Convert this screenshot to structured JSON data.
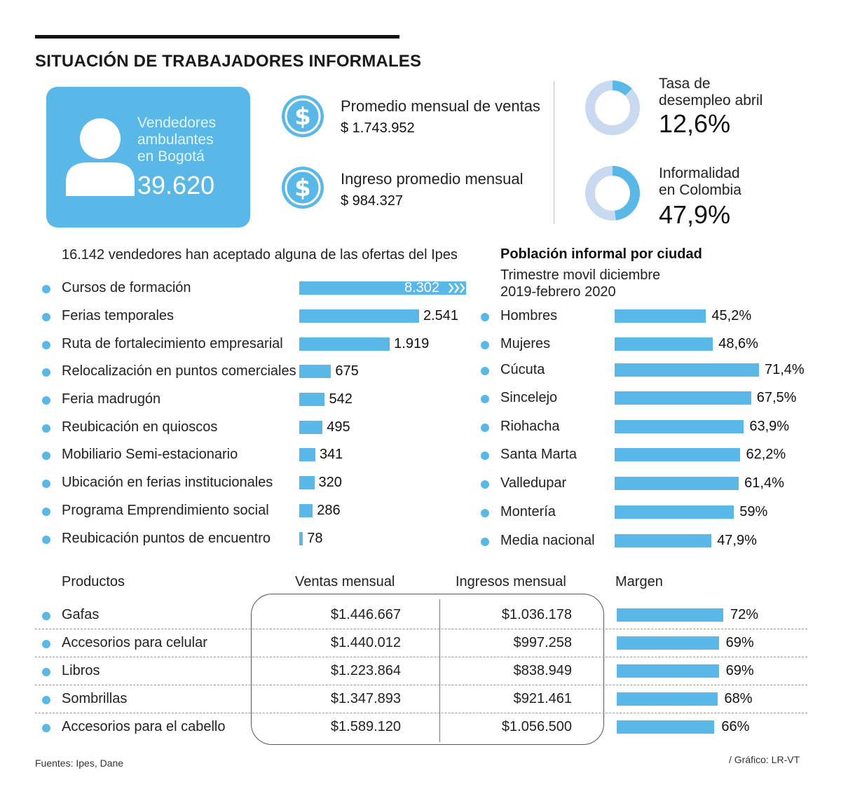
{
  "title": "SITUACIÓN DE TRABAJADORES INFORMALES",
  "colors": {
    "accent": "#5ab8e8",
    "donut_track": "#c9d9ef"
  },
  "card": {
    "icon": "person-icon",
    "label_lines": [
      "Vendedores",
      "ambulantes",
      "en Bogotá"
    ],
    "value": "39.620"
  },
  "stats": [
    {
      "icon": "dollar-icon",
      "label": "Promedio mensual de ventas",
      "value": "$ 1.743.952"
    },
    {
      "icon": "dollar-icon",
      "label": "Ingreso promedio mensual",
      "value": "$ 984.327"
    }
  ],
  "rates": [
    {
      "label_lines": [
        "Tasa de",
        "desempleo abril"
      ],
      "value": "12,6%",
      "percent": 12.6
    },
    {
      "label_lines": [
        "Informalidad",
        "en Colombia"
      ],
      "value": "47,9%",
      "percent": 47.9
    }
  ],
  "footer": {
    "source": "Fuentes: Ipes, Dane",
    "credit": "/ Gráfico: LR-VT"
  },
  "chart_data": [
    {
      "type": "bar",
      "orientation": "horizontal",
      "title": "16.142 vendedores han aceptado alguna de las ofertas del Ipes",
      "categories": [
        "Cursos de formación",
        "Ferias temporales",
        "Ruta de fortalecimiento empresarial",
        "Relocalización en puntos comerciales",
        "Feria madrugón",
        "Reubicación en quioscos",
        "Mobiliario Semi-estacionario",
        "Ubicación en ferias institucionales",
        "Programa Emprendimiento social",
        "Reubicación puntos de encuentro"
      ],
      "values": [
        8302,
        2541,
        1919,
        675,
        542,
        495,
        341,
        320,
        286,
        78
      ],
      "labels": [
        "8.302",
        "2.541",
        "1.919",
        "675",
        "542",
        "495",
        "341",
        "320",
        "286",
        "78"
      ],
      "truncated_first_bar": true
    },
    {
      "type": "bar",
      "orientation": "horizontal",
      "title": "Población informal por ciudad",
      "subtitle_lines": [
        "Trimestre movil diciembre",
        "2019-febrero 2020"
      ],
      "categories": [
        "Hombres",
        "Mujeres",
        "Cúcuta",
        "Sincelejo",
        "Riohacha",
        "Santa Marta",
        "Valledupar",
        "Montería",
        "Media nacional"
      ],
      "values": [
        45.2,
        48.6,
        71.4,
        67.5,
        63.9,
        62.2,
        61.4,
        59,
        47.9
      ],
      "labels": [
        "45,2%",
        "48,6%",
        "71,4%",
        "67,5%",
        "63,9%",
        "62,2%",
        "61,4%",
        "59%",
        "47,9%"
      ]
    },
    {
      "type": "table",
      "columns": [
        "Productos",
        "Ventas mensual",
        "Ingresos mensual",
        "Margen"
      ],
      "rows": [
        {
          "product": "Gafas",
          "ventas": "$1.446.667",
          "ingresos": "$1.036.178",
          "margen": "72%",
          "margen_value": 72
        },
        {
          "product": "Accesorios para celular",
          "ventas": "$1.440.012",
          "ingresos": "$997.258",
          "margen": "69%",
          "margen_value": 69
        },
        {
          "product": "Libros",
          "ventas": "$1.223.864",
          "ingresos": "$838.949",
          "margen": "69%",
          "margen_value": 69
        },
        {
          "product": "Sombrillas",
          "ventas": "$1.347.893",
          "ingresos": "$921.461",
          "margen": "68%",
          "margen_value": 68
        },
        {
          "product": "Accesorios para el cabello",
          "ventas": "$1.589.120",
          "ingresos": "$1.056.500",
          "margen": "66%",
          "margen_value": 66
        }
      ]
    }
  ]
}
